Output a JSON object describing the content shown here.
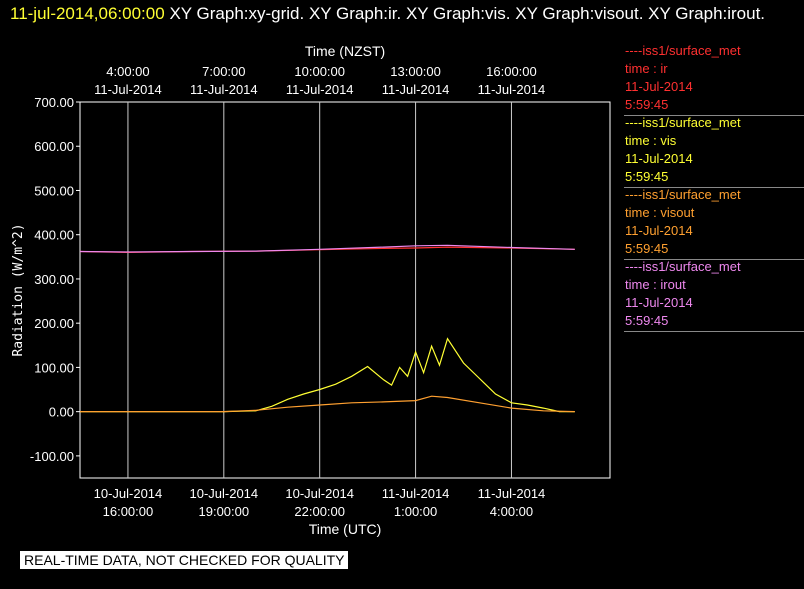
{
  "header": {
    "timestamp": "11-jul-2014,06:00:00",
    "graphs": "XY Graph:xy-grid.  XY Graph:ir.  XY Graph:vis.  XY Graph:visout.  XY Graph:irout."
  },
  "legend": [
    {
      "source": "----iss1/surface_met",
      "field": "time : ir",
      "date": "11-Jul-2014",
      "time": "5:59:45",
      "color": "#ff3030"
    },
    {
      "source": "----iss1/surface_met",
      "field": "time : vis",
      "date": "11-Jul-2014",
      "time": "5:59:45",
      "color": "#ffff33"
    },
    {
      "source": "----iss1/surface_met",
      "field": "time : visout",
      "date": "11-Jul-2014",
      "time": "5:59:45",
      "color": "#ffa030"
    },
    {
      "source": "----iss1/surface_met",
      "field": "time : irout",
      "date": "11-Jul-2014",
      "time": "5:59:45",
      "color": "#ee88ee"
    }
  ],
  "disclaimer": "REAL-TIME DATA, NOT CHECKED FOR QUALITY",
  "chart_data": {
    "type": "line",
    "title": "",
    "xlabel": "Time (UTC)",
    "x2label": "Time (NZST)",
    "ylabel": "Radiation  (W/m^2)",
    "xlim": [
      "2014-07-10T14:30",
      "2014-07-11T07:05"
    ],
    "ylim": [
      -150,
      700
    ],
    "y_ticks": [
      "700.00",
      "600.00",
      "500.00",
      "400.00",
      "300.00",
      "200.00",
      "100.00",
      "0.00",
      "-100.00"
    ],
    "x_ticks_bottom": [
      {
        "date": "10-Jul-2014",
        "time": "16:00:00"
      },
      {
        "date": "10-Jul-2014",
        "time": "19:00:00"
      },
      {
        "date": "10-Jul-2014",
        "time": "22:00:00"
      },
      {
        "date": "11-Jul-2014",
        "time": "1:00:00"
      },
      {
        "date": "11-Jul-2014",
        "time": "4:00:00"
      }
    ],
    "x_ticks_top": [
      {
        "time": "4:00:00",
        "date": "11-Jul-2014"
      },
      {
        "time": "7:00:00",
        "date": "11-Jul-2014"
      },
      {
        "time": "10:00:00",
        "date": "11-Jul-2014"
      },
      {
        "time": "13:00:00",
        "date": "11-Jul-2014"
      },
      {
        "time": "16:00:00",
        "date": "11-Jul-2014"
      }
    ],
    "grid": true,
    "x_hours_since_start_note_removed": null,
    "series": [
      {
        "name": "ir",
        "color": "#ff3030",
        "x": [
          "2014-07-10T14:30",
          "2014-07-10T16:00",
          "2014-07-10T18:00",
          "2014-07-10T20:00",
          "2014-07-10T22:00",
          "2014-07-11T00:00",
          "2014-07-11T01:00",
          "2014-07-11T02:00",
          "2014-07-11T04:00",
          "2014-07-11T05:59"
        ],
        "y": [
          362,
          360,
          362,
          363,
          366,
          369,
          370,
          372,
          370,
          367
        ]
      },
      {
        "name": "irout",
        "color": "#ee88ee",
        "x": [
          "2014-07-10T14:30",
          "2014-07-10T16:00",
          "2014-07-10T18:00",
          "2014-07-10T20:00",
          "2014-07-10T22:00",
          "2014-07-11T00:00",
          "2014-07-11T01:00",
          "2014-07-11T02:00",
          "2014-07-11T04:00",
          "2014-07-11T05:59"
        ],
        "y": [
          362,
          361,
          362,
          363,
          367,
          372,
          375,
          376,
          371,
          367
        ]
      },
      {
        "name": "vis",
        "color": "#ffff33",
        "x": [
          "2014-07-10T14:30",
          "2014-07-10T19:00",
          "2014-07-10T20:00",
          "2014-07-10T20:30",
          "2014-07-10T21:00",
          "2014-07-10T21:30",
          "2014-07-10T22:00",
          "2014-07-10T22:30",
          "2014-07-10T23:00",
          "2014-07-10T23:30",
          "2014-07-11T00:00",
          "2014-07-11T00:15",
          "2014-07-11T00:30",
          "2014-07-11T00:45",
          "2014-07-11T01:00",
          "2014-07-11T01:15",
          "2014-07-11T01:30",
          "2014-07-11T01:45",
          "2014-07-11T02:00",
          "2014-07-11T02:30",
          "2014-07-11T03:00",
          "2014-07-11T03:30",
          "2014-07-11T04:00",
          "2014-07-11T04:30",
          "2014-07-11T05:00",
          "2014-07-11T05:30",
          "2014-07-11T05:59"
        ],
        "y": [
          0,
          0,
          2,
          12,
          28,
          40,
          50,
          62,
          80,
          102,
          72,
          60,
          100,
          80,
          135,
          88,
          148,
          105,
          165,
          110,
          75,
          40,
          20,
          15,
          8,
          0,
          0
        ]
      },
      {
        "name": "visout",
        "color": "#ffa030",
        "x": [
          "2014-07-10T14:30",
          "2014-07-10T19:00",
          "2014-07-10T20:00",
          "2014-07-10T21:00",
          "2014-07-10T22:00",
          "2014-07-10T23:00",
          "2014-07-11T00:00",
          "2014-07-11T01:00",
          "2014-07-11T01:30",
          "2014-07-11T02:00",
          "2014-07-11T03:00",
          "2014-07-11T04:00",
          "2014-07-11T05:00",
          "2014-07-11T05:59"
        ],
        "y": [
          0,
          0,
          3,
          10,
          15,
          20,
          22,
          25,
          35,
          32,
          20,
          8,
          2,
          0
        ]
      }
    ]
  }
}
